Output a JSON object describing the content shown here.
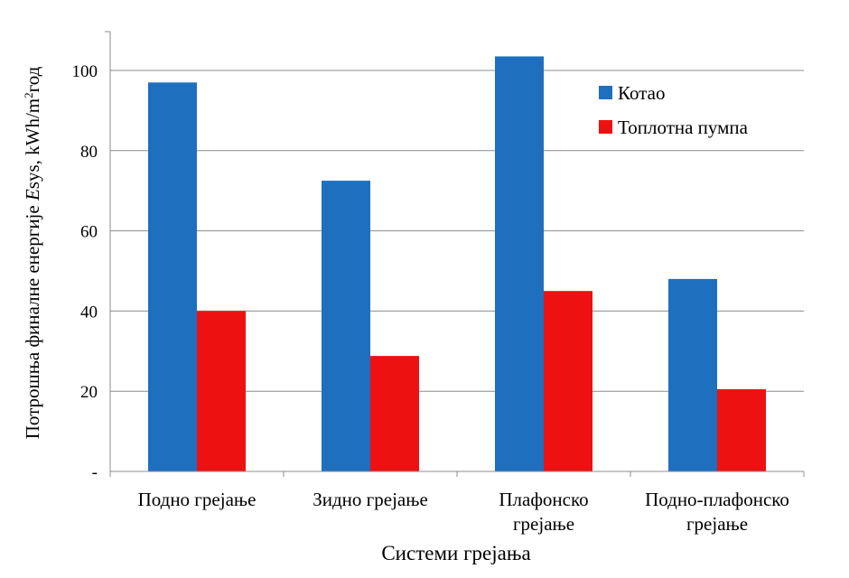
{
  "chart_data": {
    "type": "bar",
    "categories": [
      [
        "Подно грејање"
      ],
      [
        "Зидно грејање"
      ],
      [
        "Плафонско",
        "грејање"
      ],
      [
        "Подно-плафонско",
        "грејање"
      ]
    ],
    "series": [
      {
        "name": "Котао",
        "color": "#1f6fbf",
        "values": [
          97,
          72.5,
          103.5,
          48
        ]
      },
      {
        "name": "Топлотна пумпа",
        "color": "#ee1111",
        "values": [
          40,
          28.8,
          45,
          20.5
        ]
      }
    ],
    "xlabel": "Системи грејања",
    "ylabel_prefix": "Потрошња финалне енергије ",
    "ylabel_italic": "E",
    "ylabel_mid": "sys, kWh/m",
    "ylabel_sup": "2",
    "ylabel_suffix": "год",
    "yticks": [
      "-",
      "20",
      "40",
      "60",
      "80",
      "100"
    ],
    "ylim": [
      0,
      110
    ],
    "grid": true,
    "legend_position": "top-right"
  }
}
